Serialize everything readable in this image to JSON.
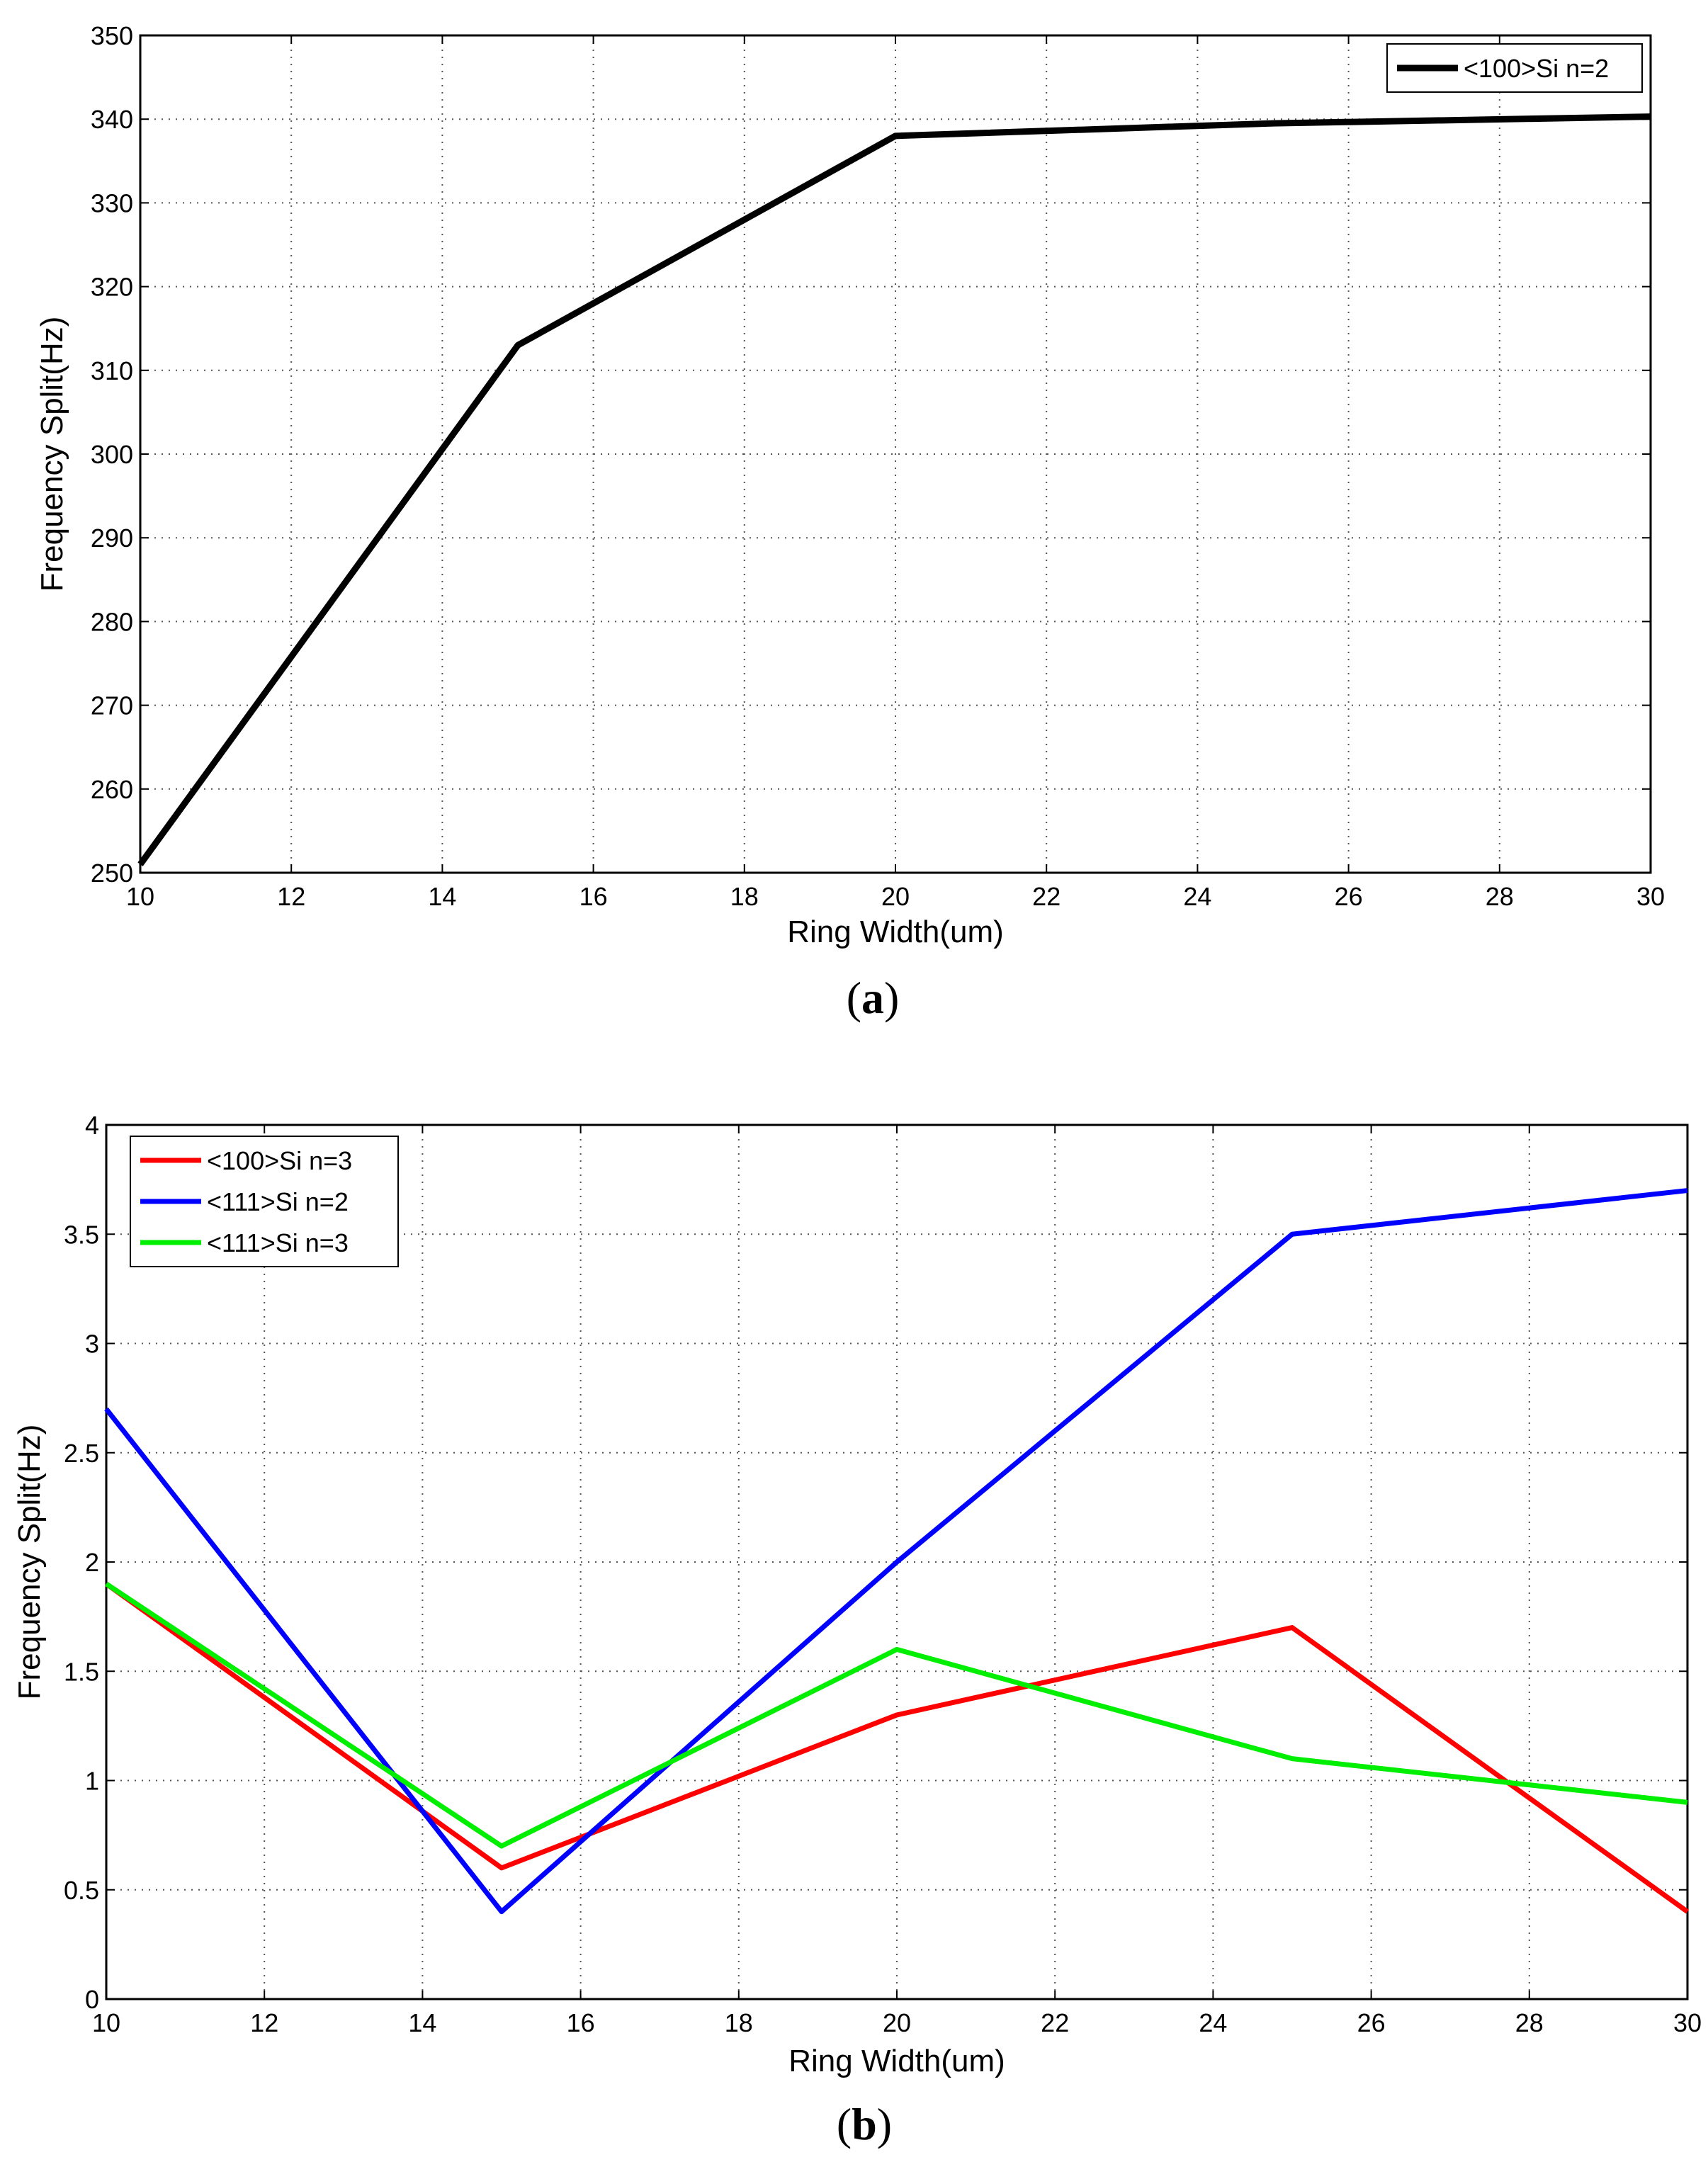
{
  "chart_data": [
    {
      "type": "line",
      "panel_label": "a",
      "title": "",
      "xlabel": "Ring Width(um)",
      "ylabel": "Frequency Split(Hz)",
      "xlim": [
        10,
        30
      ],
      "ylim": [
        250,
        350
      ],
      "xticks": [
        10,
        12,
        14,
        16,
        18,
        20,
        22,
        24,
        26,
        28,
        30
      ],
      "yticks": [
        250,
        260,
        270,
        280,
        290,
        300,
        310,
        320,
        330,
        340,
        350
      ],
      "grid": true,
      "legend_position": "top-right",
      "series": [
        {
          "name": "<100>Si n=2",
          "color": "#000000",
          "x": [
            10,
            15,
            20,
            25,
            30
          ],
          "y": [
            251,
            313,
            338,
            339.5,
            340.3
          ]
        }
      ]
    },
    {
      "type": "line",
      "panel_label": "b",
      "title": "",
      "xlabel": "Ring Width(um)",
      "ylabel": "Frequency Split(Hz)",
      "xlim": [
        10,
        30
      ],
      "ylim": [
        0,
        4
      ],
      "xticks": [
        10,
        12,
        14,
        16,
        18,
        20,
        22,
        24,
        26,
        28,
        30
      ],
      "yticks": [
        0,
        0.5,
        1,
        1.5,
        2,
        2.5,
        3,
        3.5,
        4
      ],
      "grid": true,
      "legend_position": "top-left",
      "series": [
        {
          "name": "<100>Si n=3",
          "color": "#ff0000",
          "x": [
            10,
            15,
            20,
            25,
            30
          ],
          "y": [
            1.9,
            0.6,
            1.3,
            1.7,
            0.4
          ]
        },
        {
          "name": "<111>Si n=2",
          "color": "#0000ff",
          "x": [
            10,
            15,
            20,
            25,
            30
          ],
          "y": [
            2.7,
            0.4,
            2.0,
            3.5,
            3.7
          ]
        },
        {
          "name": "<111>Si n=3",
          "color": "#00ee00",
          "x": [
            10,
            15,
            20,
            25,
            30
          ],
          "y": [
            1.9,
            0.7,
            1.6,
            1.1,
            0.9
          ]
        }
      ]
    }
  ]
}
